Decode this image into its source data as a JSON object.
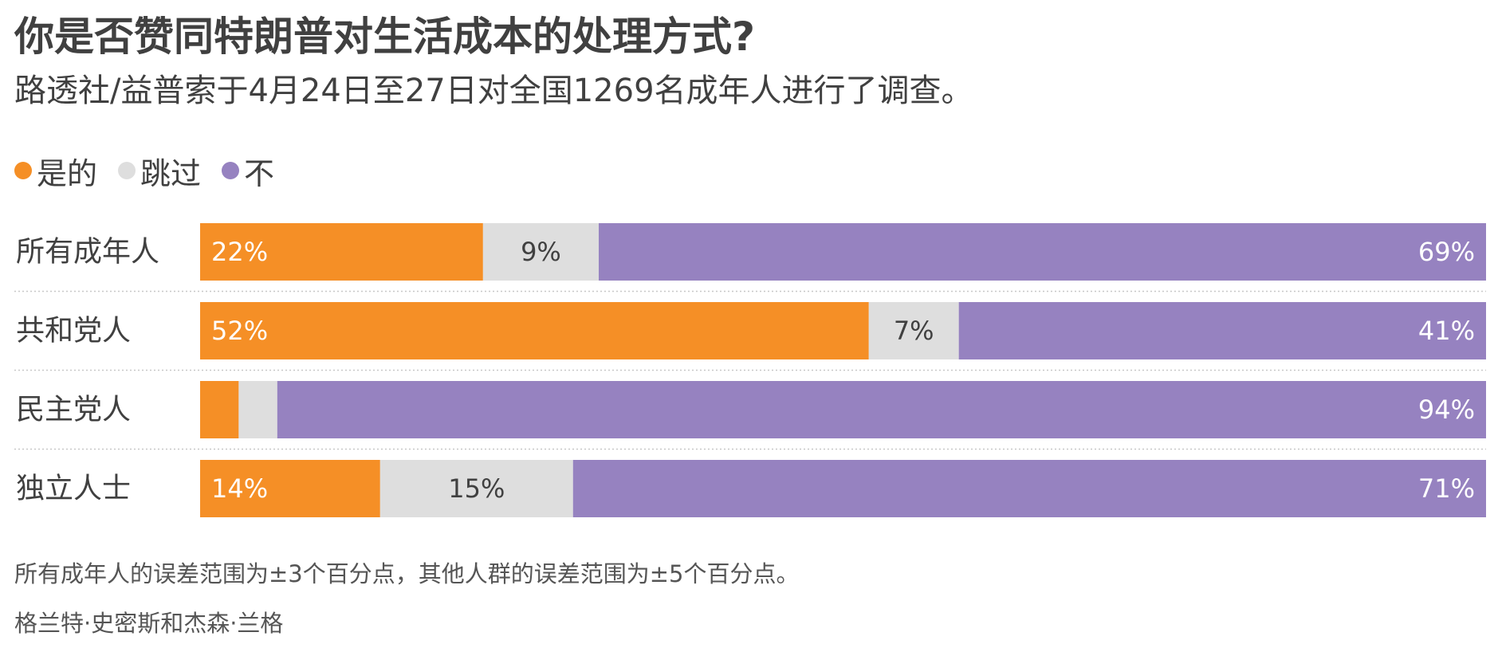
{
  "header": {
    "title": "你是否赞同特朗普对生活成本的处理方式?",
    "subtitle": "路透社/益普索于4月24日至27日对全国1269名成年人进行了调查。"
  },
  "legend": [
    {
      "label": "是的",
      "color": "#f58f26"
    },
    {
      "label": "跳过",
      "color": "#dedede"
    },
    {
      "label": "不",
      "color": "#9682c0"
    }
  ],
  "chart_data": {
    "type": "bar",
    "orientation": "horizontal",
    "stacked": true,
    "categories": [
      "所有成年人",
      "共和党人",
      "民主党人",
      "独立人士"
    ],
    "series": [
      {
        "name": "是的",
        "color": "#f58f26",
        "values": [
          22,
          52,
          3,
          14
        ],
        "labels": [
          "22%",
          "52%",
          "",
          "14%"
        ]
      },
      {
        "name": "跳过",
        "color": "#dedede",
        "values": [
          9,
          7,
          3,
          15
        ],
        "labels": [
          "9%",
          "7%",
          "",
          "15%"
        ]
      },
      {
        "name": "不",
        "color": "#9682c0",
        "values": [
          69,
          41,
          94,
          71
        ],
        "labels": [
          "69%",
          "41%",
          "94%",
          "71%"
        ]
      }
    ],
    "xlim": [
      0,
      100
    ],
    "legend_position": "top-left",
    "grid": false
  },
  "footer": {
    "note": "所有成年人的误差范围为±3个百分点，其他人群的误差范围为±5个百分点。",
    "byline": "格兰特·史密斯和杰森·兰格"
  }
}
